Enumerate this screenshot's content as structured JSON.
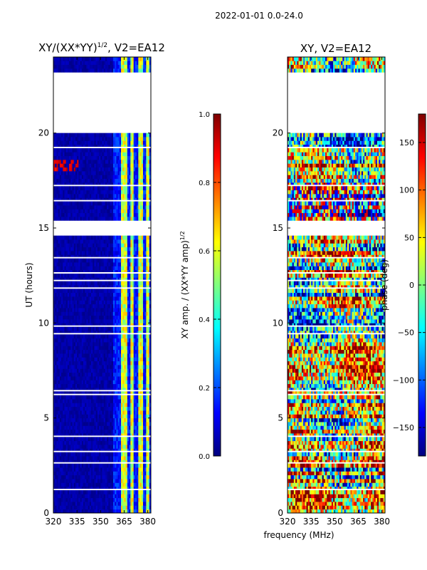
{
  "figure": {
    "suptitle": "2022-01-01 0.0-24.0",
    "xlabel": "frequency (MHz)"
  },
  "colors": {
    "jet": [
      "#00007f",
      "#0000ff",
      "#007fff",
      "#00ffff",
      "#7fff7f",
      "#ffff00",
      "#ff7f00",
      "#ff0000",
      "#7f0000"
    ]
  },
  "chart_data": [
    {
      "type": "heatmap",
      "title_main": "XY/(XX*YY)",
      "title_sup": "1/2",
      "title_tail": ", V2=EA12",
      "ylabel": "UT (hours)",
      "xlim": [
        320,
        382
      ],
      "ylim": [
        0,
        24
      ],
      "xticks": [
        320,
        335,
        350,
        365,
        380
      ],
      "yticks": [
        0,
        5,
        10,
        15,
        20
      ],
      "colorbar": {
        "label_main": "XY amp. / (XX*YY amp)",
        "label_sup": "1/2",
        "range": [
          0.0,
          1.0
        ],
        "ticks": [
          "0.0",
          "0.2",
          "0.4",
          "0.6",
          "0.8",
          "1.0"
        ]
      },
      "data_gaps_hours": [
        [
          20.1,
          23.3
        ],
        [
          14.6,
          15.4
        ]
      ],
      "high_amplitude_freq_ranges_MHz": [
        [
          363,
          367
        ],
        [
          369,
          371
        ],
        [
          374,
          377
        ],
        [
          379,
          381
        ]
      ]
    },
    {
      "type": "heatmap",
      "title": "XY, V2=EA12",
      "xlim": [
        320,
        382
      ],
      "ylim": [
        0,
        24
      ],
      "xticks": [
        320,
        335,
        350,
        365,
        380
      ],
      "yticks": [
        0,
        5,
        10,
        15,
        20
      ],
      "colorbar": {
        "label": "phase (deg)",
        "range": [
          -180,
          180
        ],
        "ticks": [
          "−150",
          "−100",
          "−50",
          "0",
          "50",
          "100",
          "150"
        ]
      },
      "data_gaps_hours": [
        [
          20.1,
          23.3
        ],
        [
          14.6,
          15.4
        ]
      ]
    }
  ]
}
